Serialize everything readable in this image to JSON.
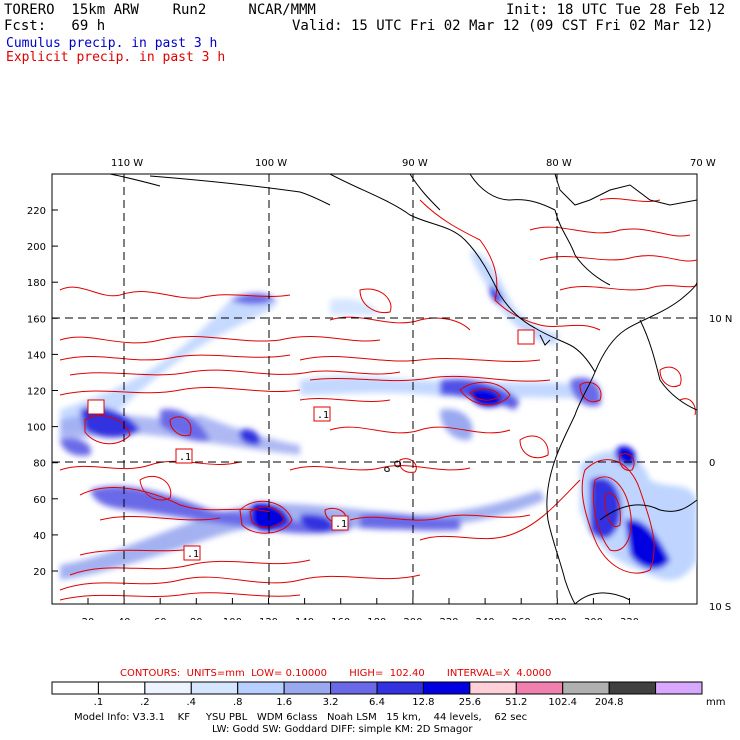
{
  "header": {
    "model": "TORERO  15km ARW    Run2     NCAR/MMM",
    "init": "Init: 18 UTC Tue 28 Feb 12",
    "fcst": "Fcst:   69 h",
    "valid": "Valid: 15 UTC Fri 02 Mar 12 (09 CST Fri 02 Mar 12)",
    "cumulus": "Cumulus precip. in past 3 h",
    "explicit": "Explicit precip. in past 3 h"
  },
  "map": {
    "top_lon_labels": [
      "110 W",
      "100 W",
      "90 W",
      "80 W",
      "70 W"
    ],
    "right_lat_labels": [
      "10 N",
      "0",
      "10 S"
    ],
    "x_ticks": [
      "20",
      "40",
      "60",
      "80",
      "100",
      "120",
      "140",
      "160",
      "180",
      "200",
      "220",
      "240",
      "260",
      "280",
      "300",
      "320"
    ],
    "y_ticks": [
      "20",
      "40",
      "60",
      "80",
      "100",
      "120",
      "140",
      "160",
      "180",
      "200",
      "220"
    ],
    "box_labels": [
      ".1",
      ".1",
      ".1",
      ".1"
    ]
  },
  "contours_text": "CONTOURS:  UNITS=mm  LOW= 0.10000       HIGH=  102.40       INTERVAL=X  4.0000",
  "legend": {
    "values": [
      ".1",
      ".2",
      ".4",
      ".8",
      "1.6",
      "3.2",
      "6.4",
      "12.8",
      "25.6",
      "51.2",
      "102.4",
      "204.8"
    ],
    "unit": "mm",
    "colors": [
      "#ffffff",
      "#ffffff",
      "#eef4ff",
      "#d6e6ff",
      "#b8d0ff",
      "#9aa8f0",
      "#6a6ae8",
      "#3232e0",
      "#0000e0",
      "#ffd0d8",
      "#f080b0",
      "#b0b0b0",
      "#404040",
      "#d8a8ff"
    ]
  },
  "footer": {
    "line1": "Model Info: V3.3.1    KF     YSU PBL   WDM 6class   Noah LSM   15 km,    44 levels,    62 sec",
    "line2": "LW: Godd SW: Goddard DIFF: simple KM: 2D Smagor"
  }
}
